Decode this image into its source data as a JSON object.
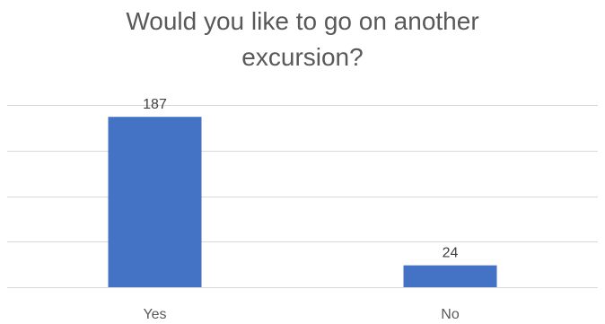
{
  "chart_data": {
    "type": "bar",
    "title": "Would you like to go on another excursion?",
    "categories": [
      "Yes",
      "No"
    ],
    "values": [
      187,
      24
    ],
    "xlabel": "",
    "ylabel": "",
    "ylim": [
      0,
      200
    ],
    "grid": true,
    "legend": "none",
    "colors": {
      "bar": "#4472C4",
      "grid": "#D9D9D9",
      "text": "#595959",
      "label": "#404040"
    }
  }
}
